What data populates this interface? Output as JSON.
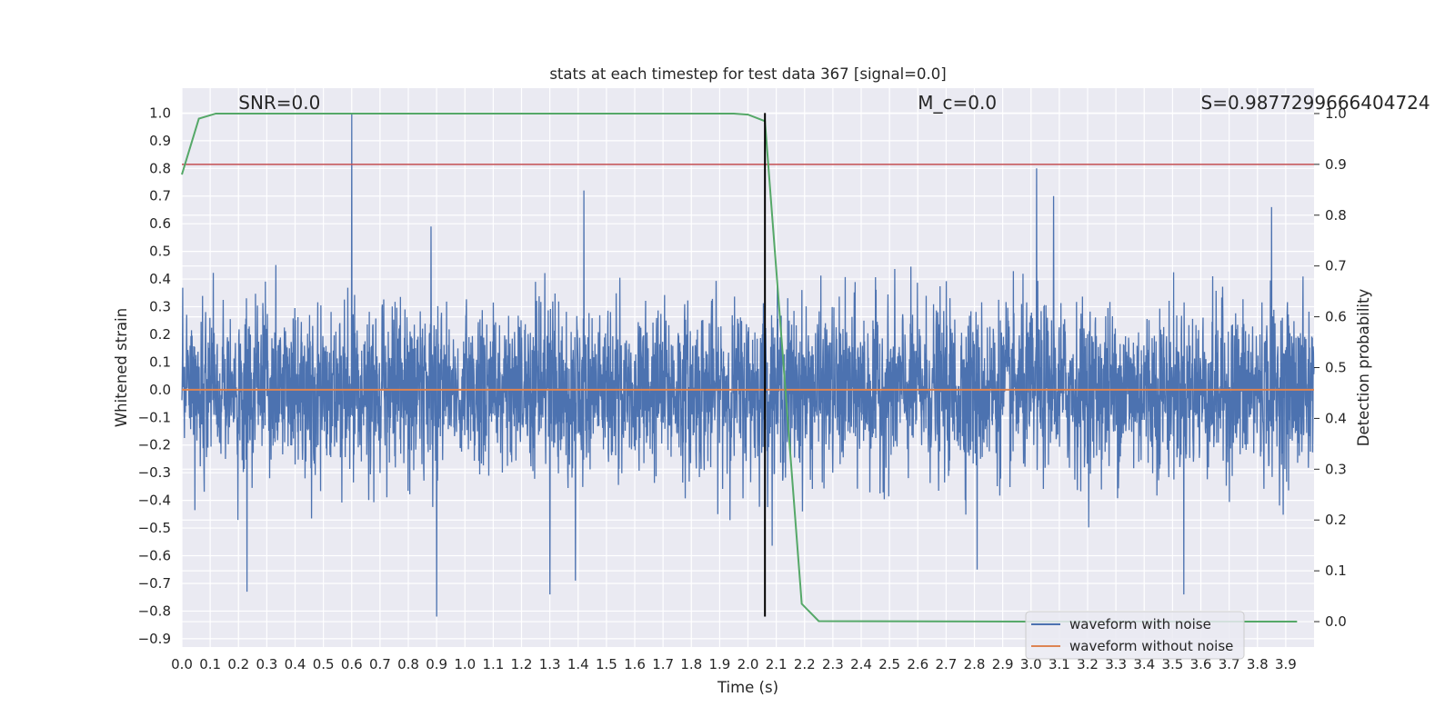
{
  "chart_data": {
    "type": "line",
    "title": "stats at each timestep for test data 367 [signal=0.0]",
    "xlabel": "Time (s)",
    "ylabel": "Whitened strain",
    "y2label": "Detection probability",
    "xlim": [
      0.0,
      4.0
    ],
    "ylim": [
      -0.93,
      1.09
    ],
    "y2lim": [
      -0.05,
      1.05
    ],
    "grid": true,
    "legend_location": "lower-right",
    "x_ticks": [
      0.0,
      0.1,
      0.2,
      0.3,
      0.4,
      0.5,
      0.6,
      0.7,
      0.8,
      0.9,
      1.0,
      1.1,
      1.2,
      1.3,
      1.4,
      1.5,
      1.6,
      1.7,
      1.8,
      1.9,
      2.0,
      2.1,
      2.2,
      2.3,
      2.4,
      2.5,
      2.6,
      2.7,
      2.8,
      2.9,
      3.0,
      3.1,
      3.2,
      3.3,
      3.4,
      3.5,
      3.6,
      3.7,
      3.8,
      3.9
    ],
    "x_tick_labels": [
      "0.0",
      "0.1",
      "0.2",
      "0.3",
      "0.4",
      "0.5",
      "0.6",
      "0.7",
      "0.8",
      "0.9",
      "1.0",
      "1.1",
      "1.2",
      "1.3",
      "1.4",
      "1.5",
      "1.6",
      "1.7",
      "1.8",
      "1.9",
      "2.0",
      "2.1",
      "2.2",
      "2.3",
      "2.4",
      "2.5",
      "2.6",
      "2.7",
      "2.8",
      "2.9",
      "3.0",
      "3.1",
      "3.2",
      "3.3",
      "3.4",
      "3.5",
      "3.6",
      "3.7",
      "3.8",
      "3.9"
    ],
    "y_ticks": [
      1.0,
      0.9,
      0.8,
      0.7,
      0.6,
      0.5,
      0.4,
      0.3,
      0.2,
      0.1,
      0.0,
      -0.1,
      -0.2,
      -0.3,
      -0.4,
      -0.5,
      -0.6,
      -0.7,
      -0.8,
      -0.9
    ],
    "y_tick_labels": [
      "1.0",
      "0.9",
      "0.8",
      "0.7",
      "0.6",
      "0.5",
      "0.4",
      "0.3",
      "0.2",
      "0.1",
      "0.0",
      "−0.1",
      "−0.2",
      "−0.3",
      "−0.4",
      "−0.5",
      "−0.6",
      "−0.7",
      "−0.8",
      "−0.9"
    ],
    "y2_ticks": [
      1.0,
      0.9,
      0.8,
      0.7,
      0.6,
      0.5,
      0.4,
      0.3,
      0.2,
      0.1,
      0.0
    ],
    "y2_tick_labels": [
      "1.0",
      "0.9",
      "0.8",
      "0.7",
      "0.6",
      "0.5",
      "0.4",
      "0.3",
      "0.2",
      "0.1",
      "0.0"
    ],
    "series": [
      {
        "name": "waveform with noise",
        "color": "#4c72b0",
        "axis": "left",
        "kind": "noise",
        "samples": 4000,
        "sigma": 0.15,
        "spikes": [
          {
            "x": 0.6,
            "y": 1.0
          },
          {
            "x": 0.9,
            "y": -0.82
          },
          {
            "x": 0.23,
            "y": -0.73
          },
          {
            "x": 1.42,
            "y": 0.72
          },
          {
            "x": 1.3,
            "y": -0.74
          },
          {
            "x": 1.39,
            "y": -0.69
          },
          {
            "x": 3.02,
            "y": 0.8
          },
          {
            "x": 3.54,
            "y": -0.74
          },
          {
            "x": 3.08,
            "y": 0.7
          },
          {
            "x": 3.85,
            "y": 0.66
          },
          {
            "x": 2.81,
            "y": -0.65
          },
          {
            "x": 0.88,
            "y": 0.59
          }
        ]
      },
      {
        "name": "waveform without noise",
        "color": "#dd8452",
        "axis": "left",
        "x": [
          0.0,
          4.0
        ],
        "values": [
          0.0,
          0.0
        ]
      },
      {
        "name": "detection probability",
        "color": "#55a868",
        "axis": "right",
        "x": [
          0.0,
          0.06,
          0.12,
          0.2,
          1.0,
          1.5,
          1.95,
          2.0,
          2.06,
          2.19,
          2.25,
          3.0,
          3.94
        ],
        "values": [
          0.88,
          0.99,
          1.0,
          1.0,
          1.0,
          1.0,
          1.0,
          0.998,
          0.985,
          0.035,
          0.001,
          0.0,
          0.0
        ]
      }
    ],
    "threshold": {
      "axis": "right",
      "value": 0.9,
      "color": "#c44e52"
    },
    "vertical_marker": {
      "x": 2.06,
      "ymin": -0.82,
      "ymax": 1.0,
      "color": "#000000"
    },
    "annotations": [
      {
        "text": "SNR=0.0",
        "x": 0.2,
        "y": 1.015
      },
      {
        "text": "M_c=0.0",
        "x": 2.6,
        "y": 1.015
      },
      {
        "text": "S=0.9877299666404724",
        "x": 3.6,
        "y": 1.015
      }
    ],
    "legend": [
      {
        "label": "waveform with noise",
        "color": "#4c72b0"
      },
      {
        "label": "waveform without noise",
        "color": "#dd8452"
      }
    ]
  }
}
